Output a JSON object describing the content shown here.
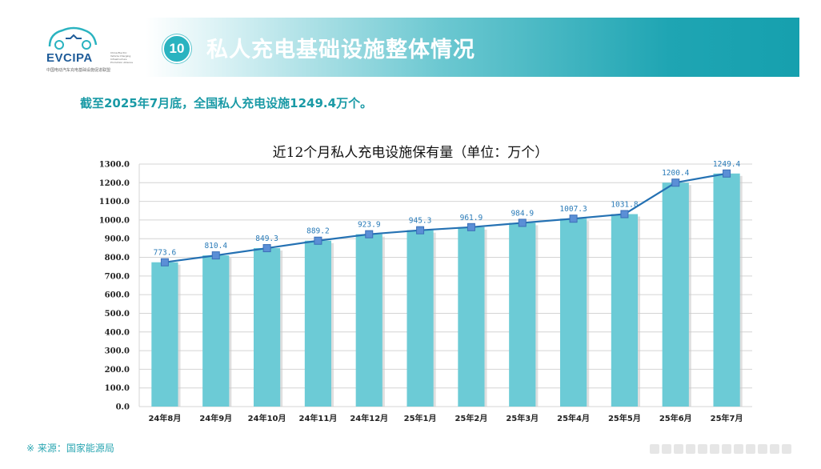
{
  "logo": {
    "name": "EVCIPA",
    "side_text": "China Electric Vehicle Charging Infrastructure Promotion Alliance",
    "subtitle": "中国电动汽车充电基础设施促进联盟"
  },
  "header": {
    "number": "10",
    "title": "私人充电基础设施整体情况"
  },
  "summary": "截至2025年7月底，全国私人充电设施1249.4万个。",
  "source": "※ 来源：国家能源局",
  "colors": {
    "bar": "#6ccbd6",
    "line": "#2471b3",
    "marker": "#5b8fd6",
    "accent": "#1fa5b3"
  },
  "chart_data": {
    "type": "bar",
    "title": "近12个月私人充电设施保有量（单位：万个）",
    "categories": [
      "24年8月",
      "24年9月",
      "24年10月",
      "24年11月",
      "24年12月",
      "25年1月",
      "25年2月",
      "25年3月",
      "25年4月",
      "25年5月",
      "25年6月",
      "25年7月"
    ],
    "values": [
      773.6,
      810.4,
      849.3,
      889.2,
      923.9,
      945.3,
      961.9,
      984.9,
      1007.3,
      1031.8,
      1200.4,
      1249.4
    ],
    "labels": [
      "773.6",
      "810.4",
      "849.3",
      "889.2",
      "923.9",
      "945.3",
      "961.9",
      "984.9",
      "1007.3",
      "1031.8",
      "1200.4",
      "1249.4"
    ],
    "overlay_line": true,
    "ylim": [
      0,
      1300
    ],
    "ystep": 100,
    "yticks": [
      "0.0",
      "100.0",
      "200.0",
      "300.0",
      "400.0",
      "500.0",
      "600.0",
      "700.0",
      "800.0",
      "900.0",
      "1000.0",
      "1100.0",
      "1200.0",
      "1300.0"
    ],
    "xlabel": "",
    "ylabel": ""
  }
}
